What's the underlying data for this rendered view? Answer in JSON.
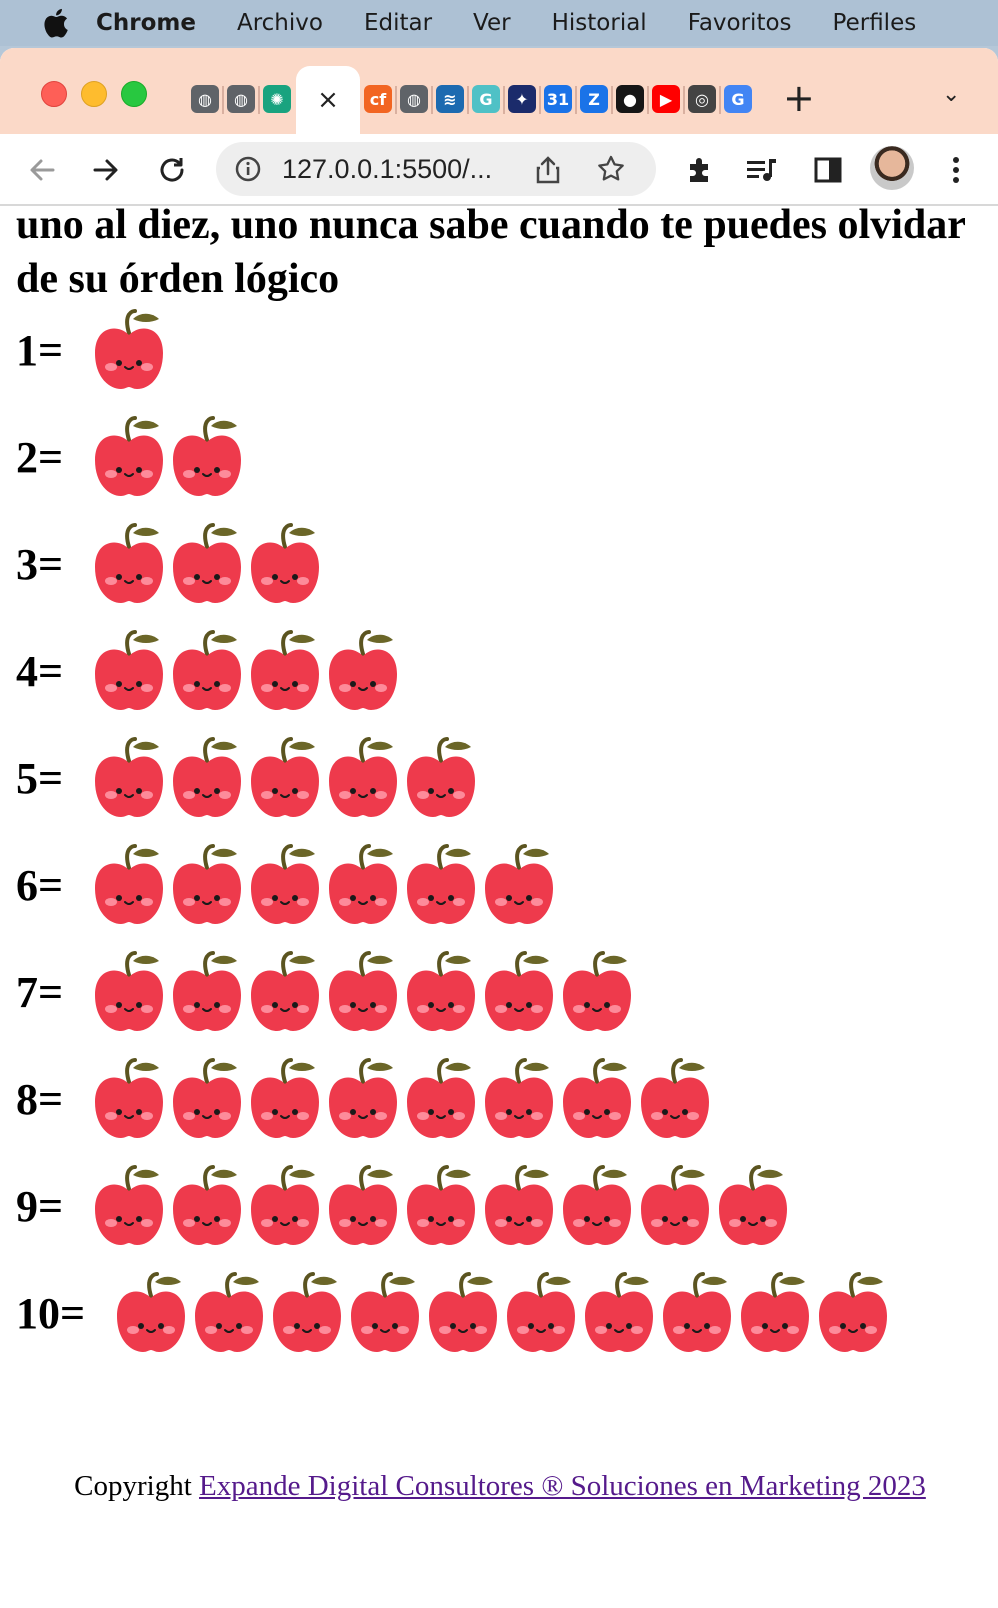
{
  "menubar": {
    "items": [
      "Chrome",
      "Archivo",
      "Editar",
      "Ver",
      "Historial",
      "Favoritos",
      "Perfiles"
    ]
  },
  "browser": {
    "active_tab_close": "×",
    "tab_icons": [
      {
        "name": "globe-icon",
        "color": "#5f6368",
        "glyph": "◍"
      },
      {
        "name": "globe-icon",
        "color": "#5f6368",
        "glyph": "◍"
      },
      {
        "name": "openai-icon",
        "color": "#19a37f",
        "glyph": "✺"
      },
      {
        "name": "codepen-icon",
        "color": "#f26522",
        "glyph": "cf"
      },
      {
        "name": "globe-icon",
        "color": "#5f6368",
        "glyph": "◍"
      },
      {
        "name": "jquery-icon",
        "color": "#1c6ab0",
        "glyph": "≋"
      },
      {
        "name": "gcreator-icon",
        "color": "#4fc1c6",
        "glyph": "G"
      },
      {
        "name": "starry-icon",
        "color": "#1b2b6b",
        "glyph": "✦"
      },
      {
        "name": "calendar-icon",
        "color": "#1a73e8",
        "glyph": "31"
      },
      {
        "name": "zoho-icon",
        "color": "#1a73e8",
        "glyph": "Z"
      },
      {
        "name": "github-icon",
        "color": "#161616",
        "glyph": "●"
      },
      {
        "name": "youtube-icon",
        "color": "#ff0000",
        "glyph": "▶"
      },
      {
        "name": "chrome-icon",
        "color": "#444444",
        "glyph": "◎"
      },
      {
        "name": "google-icon",
        "color": "#4285f4",
        "glyph": "G"
      }
    ],
    "url": "127.0.0.1:5500/..."
  },
  "page": {
    "heading": "uno al diez, uno nunca sabe cuando te puedes olvidar de su órden lógico",
    "rows": [
      {
        "label": "1=",
        "count": 1
      },
      {
        "label": "2=",
        "count": 2
      },
      {
        "label": "3=",
        "count": 3
      },
      {
        "label": "4=",
        "count": 4
      },
      {
        "label": "5=",
        "count": 5
      },
      {
        "label": "6=",
        "count": 6
      },
      {
        "label": "7=",
        "count": 7
      },
      {
        "label": "8=",
        "count": 8
      },
      {
        "label": "9=",
        "count": 9
      },
      {
        "label": "10=",
        "count": 10
      }
    ],
    "footer": {
      "prefix": "Copyright ",
      "link_text": "Expande Digital Consultores ® Soluciones en Marketing 2023"
    }
  },
  "colors": {
    "apple": "#ee3a4c",
    "link": "#551a8b"
  }
}
